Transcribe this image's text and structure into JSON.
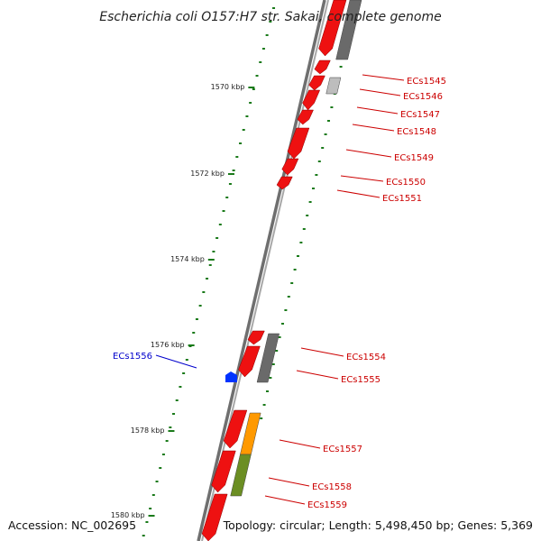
{
  "title": "Escherichia coli O157:H7 str. Sakai, complete genome",
  "footer": {
    "accession": "Accession: NC_002695",
    "topology": "Topology: circular; Length: 5,498,450 bp; Genes: 5,369"
  },
  "colors": {
    "backbone": "#808080",
    "gene_forward": "#ee1111",
    "gene_grey": "#6a6a6a",
    "gene_lightgrey": "#bdbdbd",
    "gene_orange": "#ff9900",
    "gene_olive": "#6b8e23",
    "gene_blue": "#0033ff",
    "gc_ticks": "#1a7a1a",
    "label_red": "#cc0000",
    "label_blue": "#0000cc"
  },
  "ticks": [
    {
      "label": "1570 kbp"
    },
    {
      "label": "1572 kbp"
    },
    {
      "label": "1574 kbp"
    },
    {
      "label": "1576 kbp"
    },
    {
      "label": "1578 kbp"
    },
    {
      "label": "1580 kbp"
    }
  ],
  "gene_labels": [
    {
      "label": "ECs1545",
      "color": "red"
    },
    {
      "label": "ECs1546",
      "color": "red"
    },
    {
      "label": "ECs1547",
      "color": "red"
    },
    {
      "label": "ECs1548",
      "color": "red"
    },
    {
      "label": "ECs1549",
      "color": "red"
    },
    {
      "label": "ECs1550",
      "color": "red"
    },
    {
      "label": "ECs1551",
      "color": "red"
    },
    {
      "label": "ECs1554",
      "color": "red"
    },
    {
      "label": "ECs1555",
      "color": "red"
    },
    {
      "label": "ECs1556",
      "color": "blue"
    },
    {
      "label": "ECs1557",
      "color": "red"
    },
    {
      "label": "ECs1558",
      "color": "red"
    },
    {
      "label": "ECs1559",
      "color": "red"
    }
  ]
}
